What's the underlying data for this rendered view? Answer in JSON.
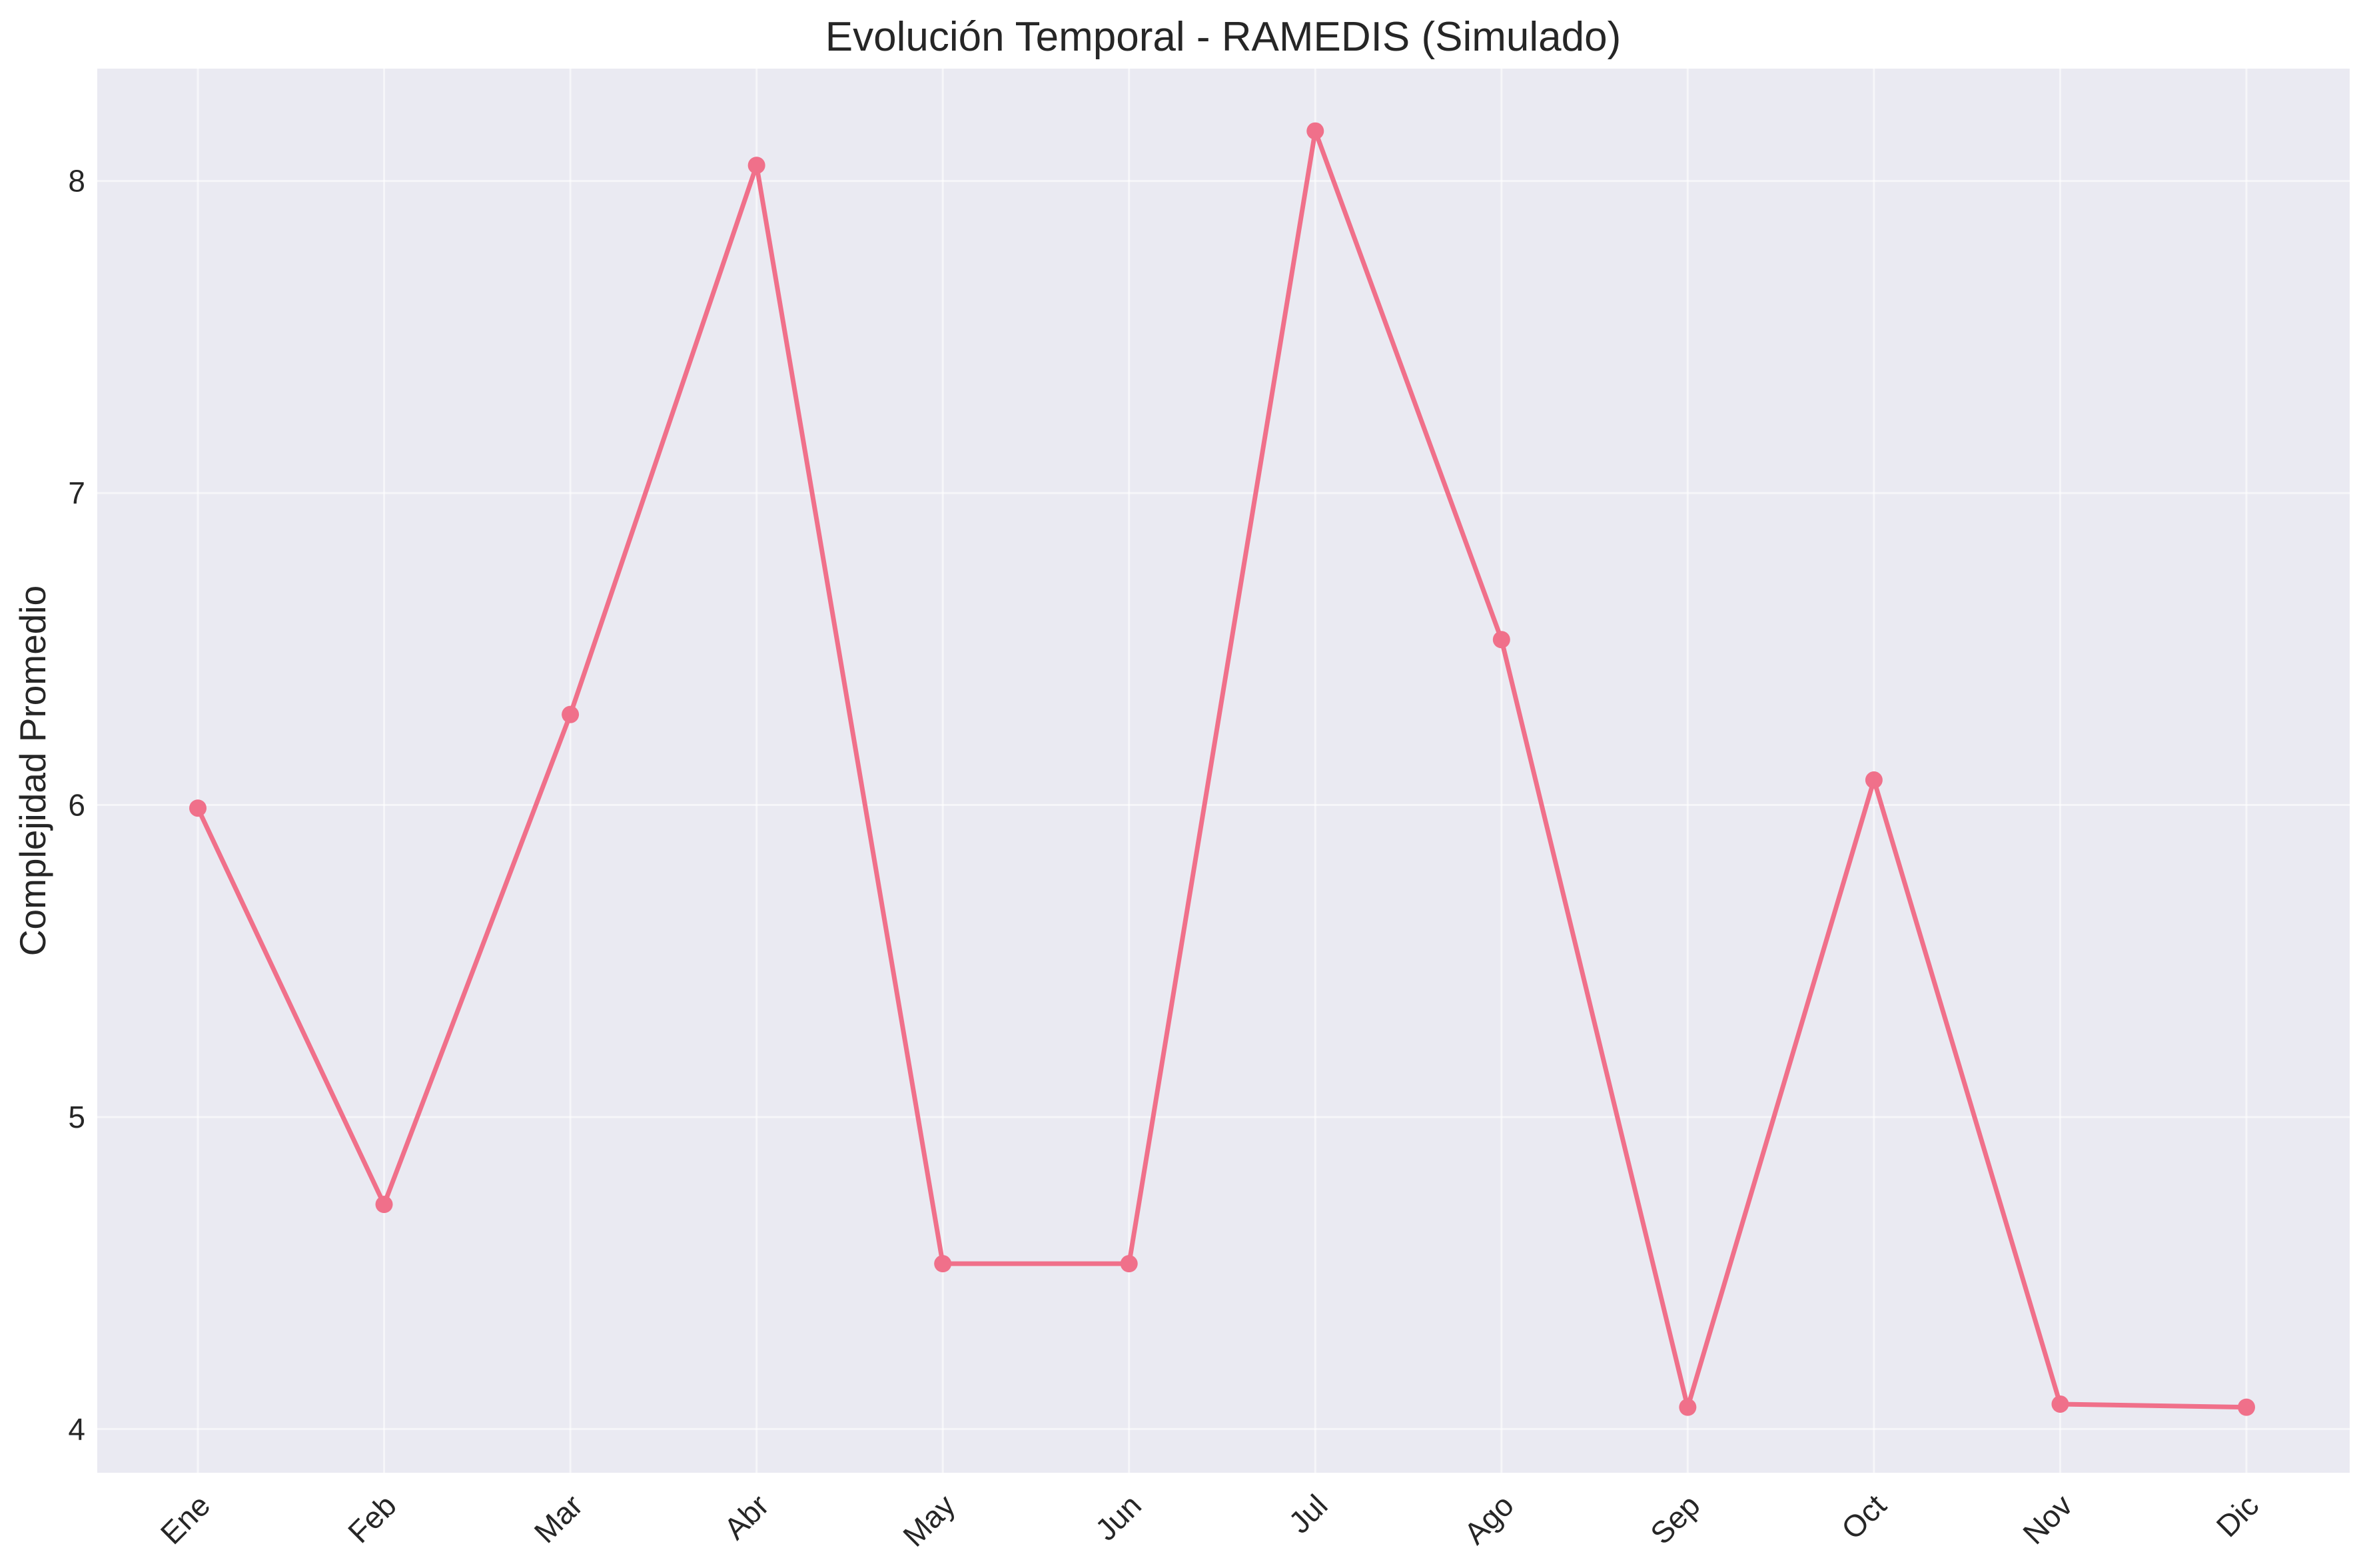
{
  "chart_data": {
    "type": "line",
    "title": "Evolución Temporal - RAMEDIS (Simulado)",
    "xlabel": "",
    "ylabel": "Complejidad Promedio",
    "categories": [
      "Ene",
      "Feb",
      "Mar",
      "Abr",
      "May",
      "Jun",
      "Jul",
      "Ago",
      "Sep",
      "Oct",
      "Nov",
      "Dic"
    ],
    "series": [
      {
        "values": [
          5.99,
          4.72,
          6.29,
          8.05,
          4.53,
          4.53,
          8.16,
          6.53,
          4.07,
          6.08,
          4.08,
          4.07
        ]
      }
    ],
    "ylim": [
      3.86,
      8.36
    ],
    "yticks": [
      4,
      5,
      6,
      7,
      8
    ],
    "grid": true,
    "colors": {
      "line": "#f0708a",
      "plot_background": "#eaeaf2",
      "grid": "#ffffff"
    }
  }
}
